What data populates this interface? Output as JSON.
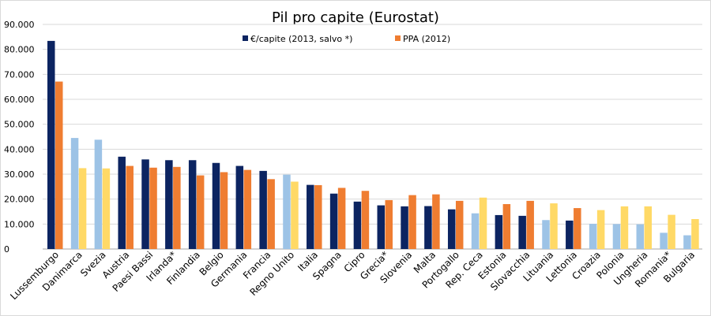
{
  "chart_data": {
    "type": "bar",
    "title": "Pil pro capite (Eurostat)",
    "xlabel": "",
    "ylabel": "",
    "ylim": [
      0,
      90000
    ],
    "yticks": [
      0,
      10000,
      20000,
      30000,
      40000,
      50000,
      60000,
      70000,
      80000,
      90000
    ],
    "ytick_labels": [
      "0",
      "10.000",
      "20.000",
      "30.000",
      "40.000",
      "50.000",
      "60.000",
      "70.000",
      "80.000",
      "90.000"
    ],
    "grid": true,
    "legend_position": "top-center",
    "categories": [
      "Lussemburgo",
      "Danimarca",
      "Svezia",
      "Austria",
      "Paesi Bassi",
      "Irlanda*",
      "Finlandia",
      "Belgio",
      "Germania",
      "Francia",
      "Regno Unito",
      "Italia",
      "Spagna",
      "Cipro",
      "Grecia*",
      "Slovenia",
      "Malta",
      "Portogallo",
      "Rep. Ceca",
      "Estonia",
      "Slovacchia",
      "Lituania",
      "Lettonia",
      "Croazia",
      "Polonia",
      "Ungheria",
      "Romania*",
      "Bulgaria"
    ],
    "series": [
      {
        "name": "€/capite (2013, salvo *)",
        "values": [
          83400,
          44500,
          43800,
          37000,
          35900,
          35600,
          35600,
          34500,
          33300,
          31300,
          29800,
          25700,
          22200,
          19000,
          17500,
          17100,
          17200,
          15900,
          14300,
          13600,
          13300,
          11600,
          11400,
          10100,
          10000,
          9900,
          6500,
          5500
        ]
      },
      {
        "name": "PPA (2012)",
        "values": [
          67100,
          32400,
          32300,
          33300,
          32600,
          32900,
          29500,
          30800,
          31700,
          28000,
          27000,
          25600,
          24500,
          23300,
          19600,
          21600,
          21900,
          19300,
          20600,
          18000,
          19300,
          18300,
          16400,
          15600,
          17100,
          17100,
          13700,
          12000
        ]
      }
    ],
    "colors": {
      "series1_eurozone": "#0c2461",
      "series2_eurozone": "#ef7d31",
      "series1_non_eurozone": "#9dc3e6",
      "series2_non_eurozone": "#ffd966"
    },
    "eurozone_flags": [
      true,
      false,
      false,
      true,
      true,
      true,
      true,
      true,
      true,
      true,
      false,
      true,
      true,
      true,
      true,
      true,
      true,
      true,
      false,
      true,
      true,
      false,
      true,
      false,
      false,
      false,
      false,
      false
    ]
  }
}
